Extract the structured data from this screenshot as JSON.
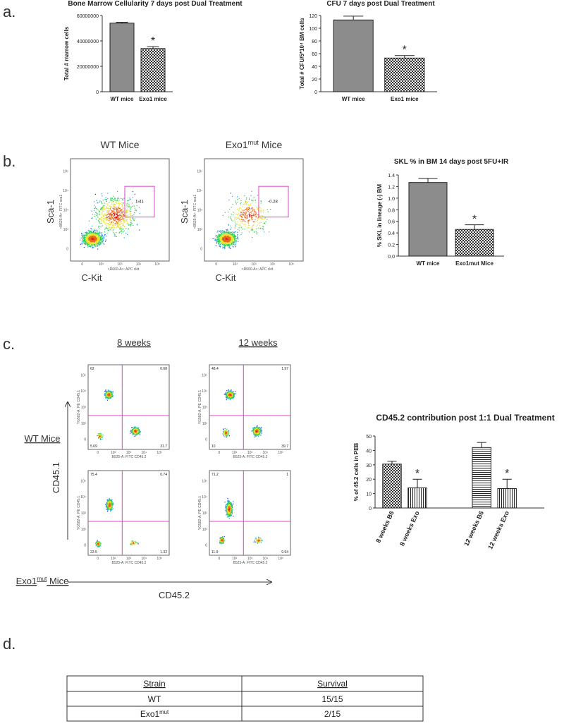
{
  "panel_labels": [
    "a.",
    "b.",
    "c.",
    "d."
  ],
  "chart_data": [
    {
      "type": "bar",
      "title": "Bone  Marrow Cellularity 7 days post Dual Treatment",
      "ylabel": "Total # marrow cells",
      "categories": [
        "WT mice",
        "Exo1 mice"
      ],
      "values": [
        54000000,
        34000000
      ],
      "errors": [
        700000,
        1500000
      ],
      "fills": [
        "#8c8c8c",
        "checker"
      ],
      "annotations": [
        null,
        "*"
      ],
      "ylim": [
        0,
        60000000
      ],
      "yticks": [
        0,
        20000000,
        40000000,
        60000000
      ]
    },
    {
      "type": "bar",
      "title": "CFU 7 days post Dual Treatment",
      "ylabel": "Total # CFU/5*10⁴ BM cells",
      "categories": [
        "WT mice",
        "Exo1 mice"
      ],
      "values": [
        113,
        53
      ],
      "errors": [
        6,
        4
      ],
      "fills": [
        "#8c8c8c",
        "checker"
      ],
      "annotations": [
        null,
        "*"
      ],
      "ylim": [
        0,
        120
      ],
      "yticks": [
        0,
        20,
        40,
        60,
        80,
        100,
        120
      ]
    },
    {
      "type": "bar",
      "title": "SKL % in BM 14 days post 5FU+IR",
      "ylabel": "% SKL in lineage (-) BM",
      "categories": [
        "WT mice",
        "Exo1mut Mice"
      ],
      "values": [
        1.27,
        0.46
      ],
      "errors": [
        0.07,
        0.08
      ],
      "fills": [
        "#8c8c8c",
        "checker"
      ],
      "annotations": [
        null,
        "*"
      ],
      "ylim": [
        0,
        1.4
      ],
      "yticks": [
        {
          "value": 0,
          "label": "0.0"
        },
        0.2,
        0.4,
        0.6,
        0.8,
        {
          "value": 1,
          "label": "1.0"
        },
        1.2,
        1.4
      ]
    },
    {
      "type": "bar",
      "title": "CD45.2 contribution post 1:1 Dual Treatment",
      "ylabel": "% of 45.2 cells in PEB",
      "categories": [
        "8 weeks B6",
        "8 weeks Exo",
        "12 weeks B6",
        "12 weeks Exo"
      ],
      "values": [
        30.5,
        14,
        42,
        13.5
      ],
      "errors": [
        2,
        6,
        3.5,
        6.5
      ],
      "fills": [
        "checker",
        "vlines",
        "hlines",
        "vlines"
      ],
      "annotations": [
        null,
        "*",
        null,
        "*"
      ],
      "ylim": [
        0,
        50
      ],
      "yticks": [
        0,
        10,
        20,
        30,
        40,
        50
      ]
    }
  ],
  "flow_b": {
    "ticks": [
      "0",
      "10²",
      "10³",
      "10⁴",
      "10⁵"
    ],
    "plots": [
      {
        "title": {
          "text": "WT Mice"
        },
        "ylabel": "Sca-1",
        "xlabel": "C-Kit",
        "y_param": "<B525-A>: FITC sca1",
        "x_param": "<R660-A>: APC ckit",
        "gate": "1.41"
      },
      {
        "title": {
          "text": "Exo1",
          "sup": "mut",
          "after": " Mice"
        },
        "ylabel": "Sca-1",
        "xlabel": "C-Kit",
        "y_param": "<B525-A>: FITC sca1",
        "x_param": "<R660-A>: APC ckit",
        "gate": "0.28"
      }
    ]
  },
  "flow_c": {
    "columns": [
      "8 weeks",
      "12 weeks"
    ],
    "rows": [
      {
        "text": "WT Mice"
      },
      {
        "text": "Exo1",
        "sup": "mut",
        "after": " Mice"
      }
    ],
    "y_axis": "CD45.1",
    "x_axis": "CD45.2",
    "y_param": "YG582-A: PE CD45.1",
    "x_param": "B525-A: FITC CD45.2",
    "ticks": [
      "0",
      "10²",
      "10³",
      "10⁴",
      "10⁵"
    ],
    "plots": [
      {
        "quadrants": [
          "62",
          "0.68",
          "5.69",
          "31.7"
        ]
      },
      {
        "quadrants": [
          "48.4",
          "1.97",
          "10",
          "39.7"
        ]
      },
      {
        "quadrants": [
          "75.4",
          "0.74",
          "22.5",
          "1.32"
        ]
      },
      {
        "quadrants": [
          "71.2",
          "1",
          "11.9",
          "9.94"
        ]
      }
    ]
  },
  "table": {
    "header": [
      "Strain",
      "Survival"
    ],
    "rows": [
      [
        {
          "text": "WT"
        },
        "15/15"
      ],
      [
        {
          "text": "Exo1",
          "sup": "mut"
        },
        "2/15"
      ]
    ]
  }
}
